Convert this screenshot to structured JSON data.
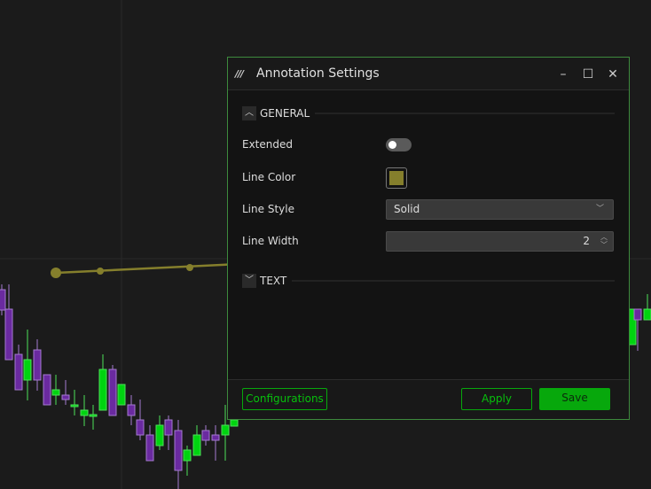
{
  "dialog": {
    "title": "Annotation Settings",
    "minimize_icon": "minimize-icon",
    "maximize_icon": "maximize-icon",
    "close_icon": "close-icon"
  },
  "general": {
    "label": "GENERAL",
    "extended_label": "Extended",
    "extended_on": false,
    "line_color_label": "Line Color",
    "line_color": "#857f2c",
    "line_style_label": "Line Style",
    "line_style": "Solid",
    "line_width_label": "Line Width",
    "line_width": "2"
  },
  "text_section": {
    "label": "TEXT"
  },
  "footer": {
    "configurations": "Configurations",
    "apply": "Apply",
    "save": "Save"
  },
  "colors": {
    "accent": "#07a80c",
    "up": "#00d410",
    "down": "#6a2aa0",
    "annotation": "#857f2c"
  }
}
